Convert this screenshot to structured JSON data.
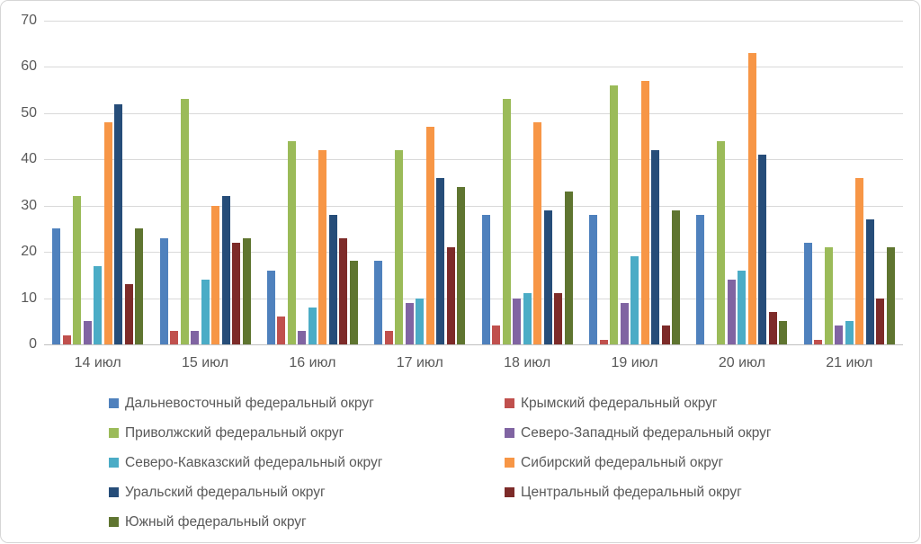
{
  "chart_data": {
    "type": "bar",
    "title": "",
    "xlabel": "",
    "ylabel": "",
    "ylim": [
      0,
      70
    ],
    "y_ticks": [
      0,
      10,
      20,
      30,
      40,
      50,
      60,
      70
    ],
    "grid": true,
    "legend_position": "bottom",
    "legend_columns": 2,
    "categories": [
      "14 июл",
      "15 июл",
      "16 июл",
      "17 июл",
      "18 июл",
      "19 июл",
      "20 июл",
      "21 июл"
    ],
    "series": [
      {
        "name": "Дальневосточный федеральный округ",
        "color": "#4F81BD",
        "values": [
          25,
          23,
          16,
          18,
          28,
          28,
          28,
          22
        ]
      },
      {
        "name": "Крымский федеральный округ",
        "color": "#C0504D",
        "values": [
          2,
          3,
          6,
          3,
          4,
          1,
          0,
          1
        ]
      },
      {
        "name": "Приволжский федеральный округ",
        "color": "#9BBB59",
        "values": [
          32,
          53,
          44,
          42,
          53,
          56,
          44,
          21
        ]
      },
      {
        "name": "Северо-Западный федеральный округ",
        "color": "#8064A2",
        "values": [
          5,
          3,
          3,
          9,
          10,
          9,
          14,
          4
        ]
      },
      {
        "name": "Северо-Кавказский федеральный округ",
        "color": "#4BACC6",
        "values": [
          17,
          14,
          8,
          10,
          11,
          19,
          16,
          5
        ]
      },
      {
        "name": "Сибирский федеральный округ",
        "color": "#F79646",
        "values": [
          48,
          30,
          42,
          47,
          48,
          57,
          63,
          36
        ]
      },
      {
        "name": "Уральский федеральный округ",
        "color": "#264D79",
        "values": [
          52,
          32,
          28,
          36,
          29,
          42,
          41,
          27
        ]
      },
      {
        "name": "Центральный федеральный округ",
        "color": "#7D2B29",
        "values": [
          13,
          22,
          23,
          21,
          11,
          4,
          7,
          10
        ]
      },
      {
        "name": "Южный федеральный округ",
        "color": "#5F7530",
        "values": [
          25,
          23,
          18,
          34,
          33,
          29,
          5,
          21
        ]
      }
    ],
    "colors": {
      "gridline": "#d9d9d9",
      "axis_line": "#bfbfbf",
      "tick_text": "#595959",
      "legend_text": "#595959"
    }
  }
}
